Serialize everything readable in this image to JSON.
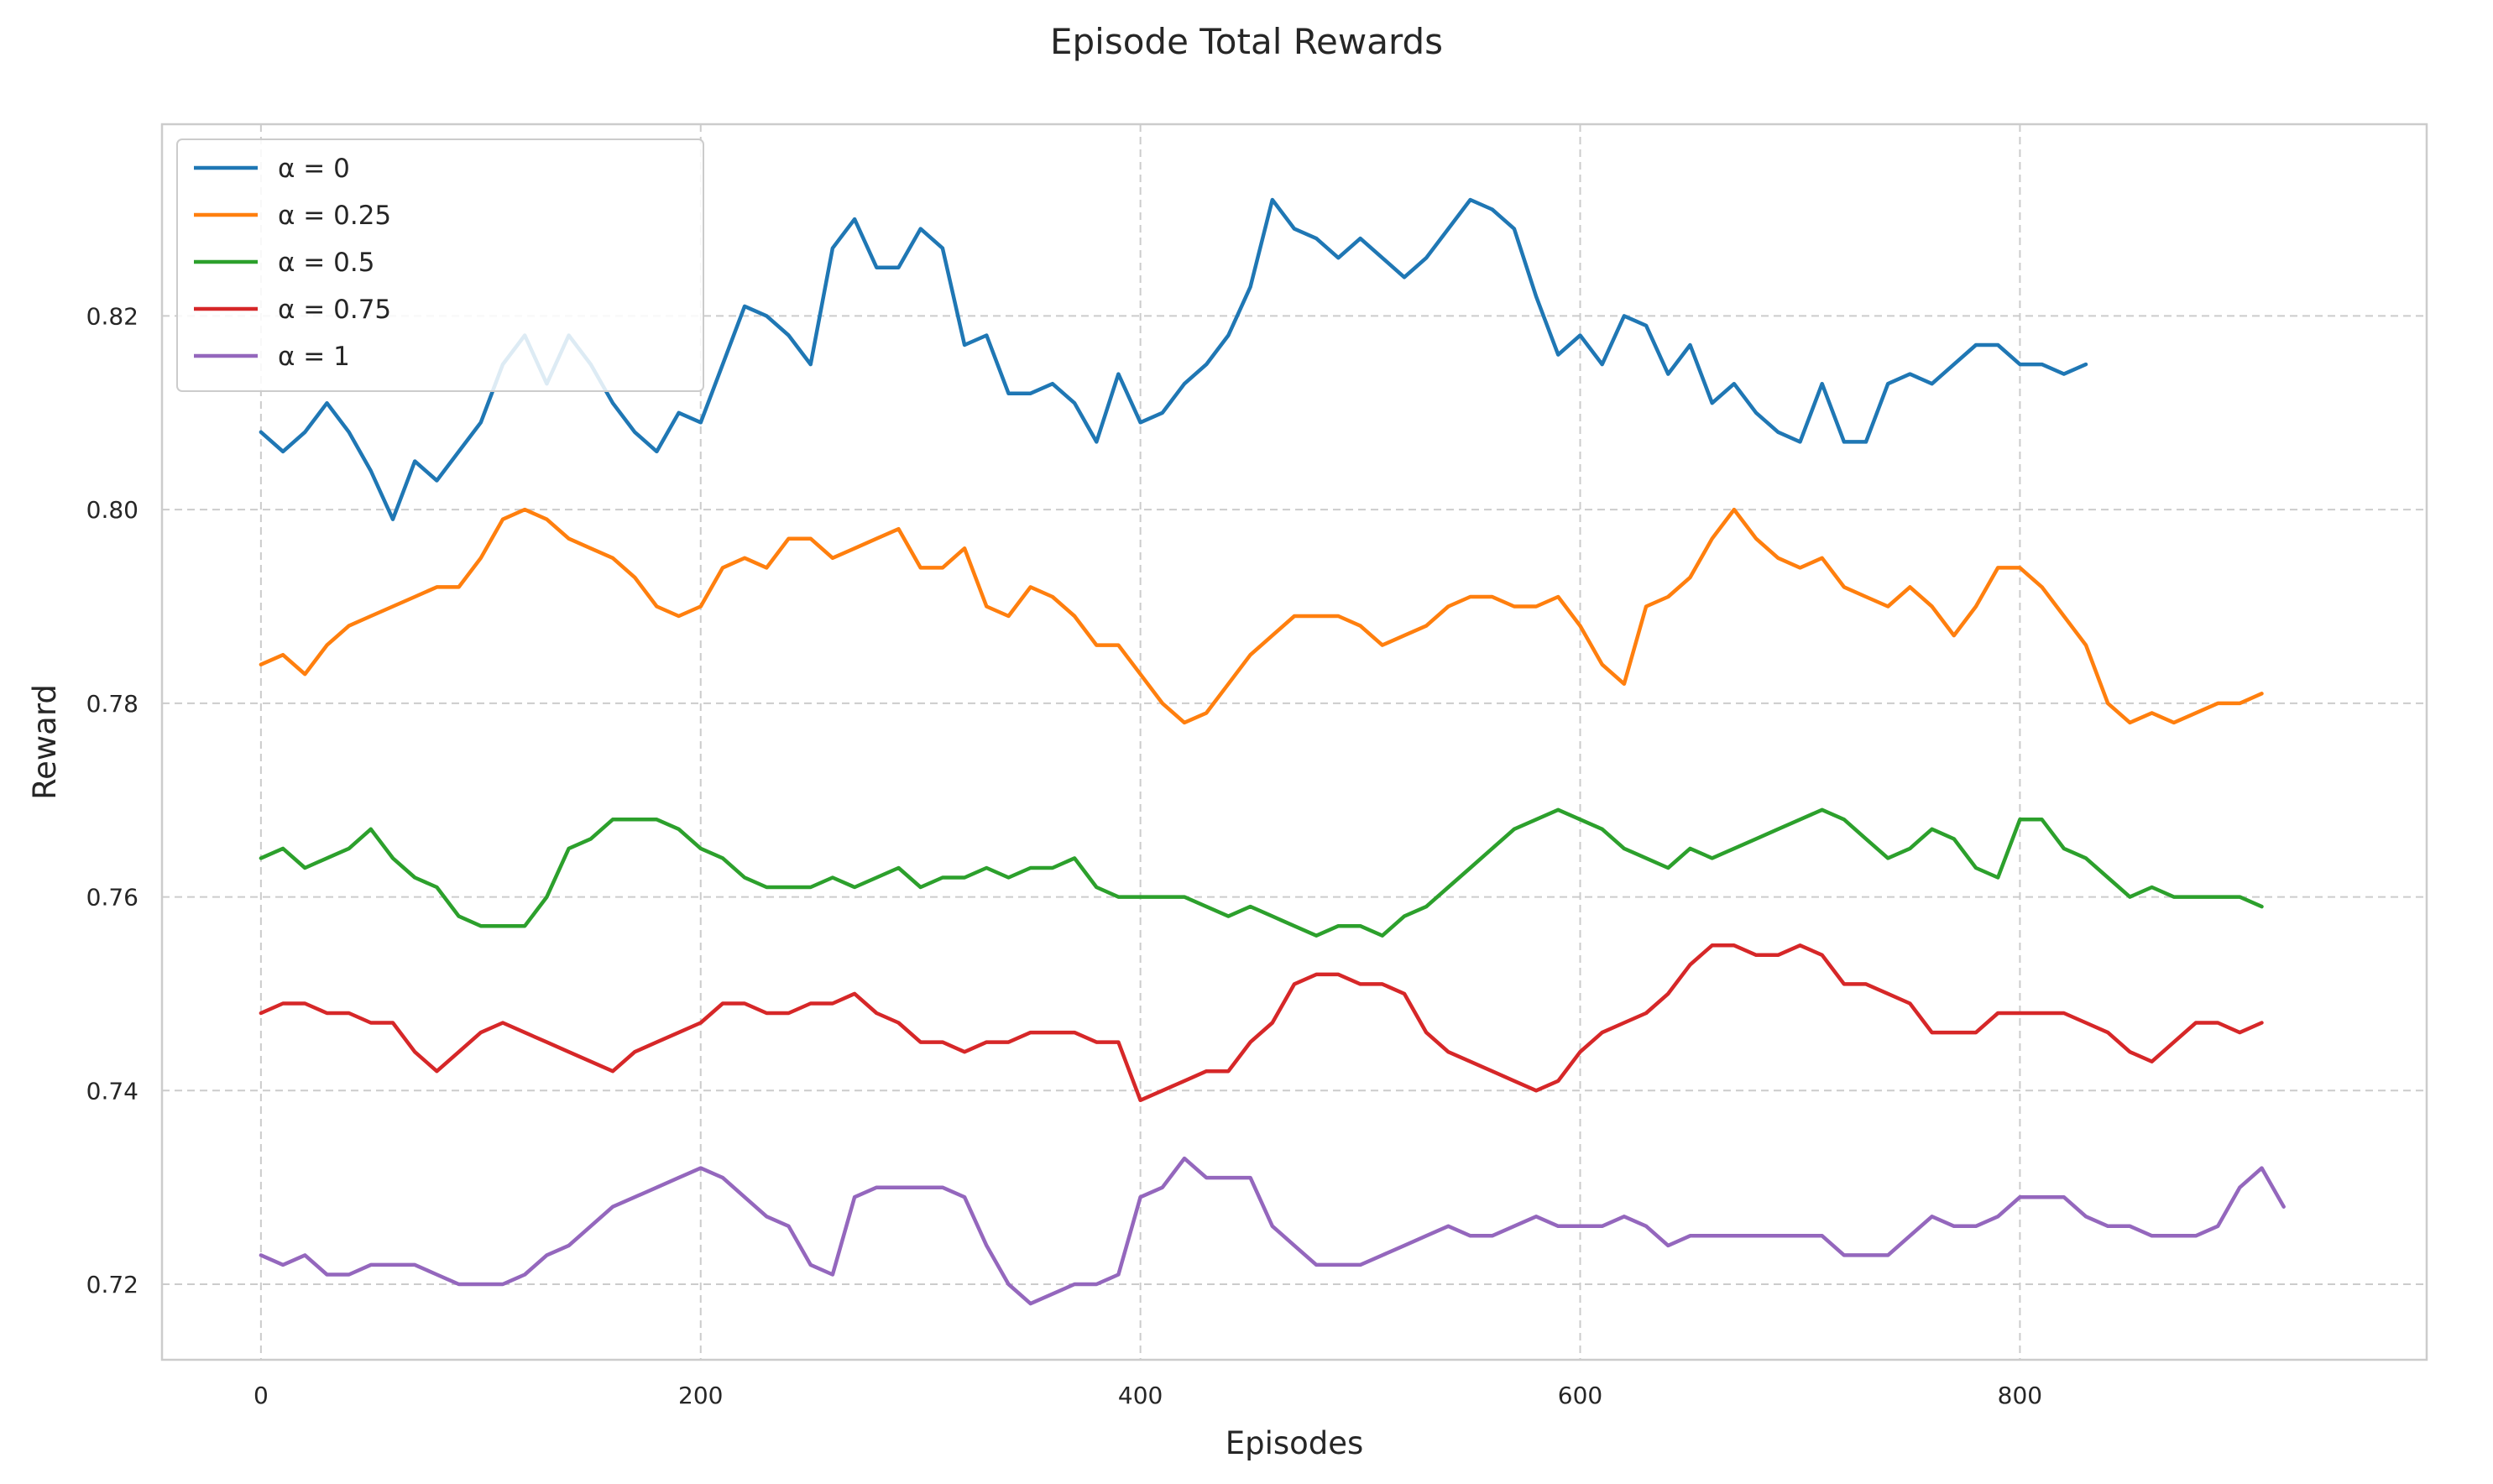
{
  "chart_data": {
    "type": "line",
    "title": "Episode Total Rewards",
    "xlabel": "Episodes",
    "ylabel": "Reward",
    "xlim": [
      -45,
      985
    ],
    "ylim": [
      0.7122,
      0.8398
    ],
    "x_ticks": [
      0,
      200,
      400,
      600,
      800
    ],
    "y_ticks": [
      0.72,
      0.74,
      0.76,
      0.78,
      0.8,
      0.82
    ],
    "x_tick_labels": [
      "0",
      "200",
      "400",
      "600",
      "800"
    ],
    "y_tick_labels": [
      "0.72",
      "0.74",
      "0.76",
      "0.78",
      "0.80",
      "0.82"
    ],
    "grid": true,
    "legend_position": "top-left",
    "x_step": 10,
    "series": [
      {
        "name": "α = 0",
        "color": "#1f77b4",
        "values": [
          0.808,
          0.806,
          0.808,
          0.811,
          0.808,
          0.804,
          0.799,
          0.805,
          0.803,
          0.806,
          0.809,
          0.815,
          0.818,
          0.813,
          0.818,
          0.815,
          0.811,
          0.808,
          0.806,
          0.81,
          0.809,
          0.815,
          0.821,
          0.82,
          0.818,
          0.815,
          0.827,
          0.83,
          0.825,
          0.825,
          0.829,
          0.827,
          0.817,
          0.818,
          0.812,
          0.812,
          0.813,
          0.811,
          0.807,
          0.814,
          0.809,
          0.81,
          0.813,
          0.815,
          0.818,
          0.823,
          0.832,
          0.829,
          0.828,
          0.826,
          0.828,
          0.826,
          0.824,
          0.826,
          0.829,
          0.832,
          0.831,
          0.829,
          0.822,
          0.816,
          0.818,
          0.815,
          0.82,
          0.819,
          0.814,
          0.817,
          0.811,
          0.813,
          0.81,
          0.808,
          0.807,
          0.813,
          0.807,
          0.807,
          0.813,
          0.814,
          0.813,
          0.815,
          0.817,
          0.817,
          0.815,
          0.815,
          0.814,
          0.815
        ]
      },
      {
        "name": "α = 0.25",
        "color": "#ff7f0e",
        "values": [
          0.784,
          0.785,
          0.783,
          0.786,
          0.788,
          0.789,
          0.79,
          0.791,
          0.792,
          0.792,
          0.795,
          0.799,
          0.8,
          0.799,
          0.797,
          0.796,
          0.795,
          0.793,
          0.79,
          0.789,
          0.79,
          0.794,
          0.795,
          0.794,
          0.797,
          0.797,
          0.795,
          0.796,
          0.797,
          0.798,
          0.794,
          0.794,
          0.796,
          0.79,
          0.789,
          0.792,
          0.791,
          0.789,
          0.786,
          0.786,
          0.783,
          0.78,
          0.778,
          0.779,
          0.782,
          0.785,
          0.787,
          0.789,
          0.789,
          0.789,
          0.788,
          0.786,
          0.787,
          0.788,
          0.79,
          0.791,
          0.791,
          0.79,
          0.79,
          0.791,
          0.788,
          0.784,
          0.782,
          0.79,
          0.791,
          0.793,
          0.797,
          0.8,
          0.797,
          0.795,
          0.794,
          0.795,
          0.792,
          0.791,
          0.79,
          0.792,
          0.79,
          0.787,
          0.79,
          0.794,
          0.794,
          0.792,
          0.789,
          0.786,
          0.78,
          0.778,
          0.779,
          0.778,
          0.779,
          0.78,
          0.78,
          0.781
        ]
      },
      {
        "name": "α = 0.5",
        "color": "#2ca02c",
        "values": [
          0.764,
          0.765,
          0.763,
          0.764,
          0.765,
          0.767,
          0.764,
          0.762,
          0.761,
          0.758,
          0.757,
          0.757,
          0.757,
          0.76,
          0.765,
          0.766,
          0.768,
          0.768,
          0.768,
          0.767,
          0.765,
          0.764,
          0.762,
          0.761,
          0.761,
          0.761,
          0.762,
          0.761,
          0.762,
          0.763,
          0.761,
          0.762,
          0.762,
          0.763,
          0.762,
          0.763,
          0.763,
          0.764,
          0.761,
          0.76,
          0.76,
          0.76,
          0.76,
          0.759,
          0.758,
          0.759,
          0.758,
          0.757,
          0.756,
          0.757,
          0.757,
          0.756,
          0.758,
          0.759,
          0.761,
          0.763,
          0.765,
          0.767,
          0.768,
          0.769,
          0.768,
          0.767,
          0.765,
          0.764,
          0.763,
          0.765,
          0.764,
          0.765,
          0.766,
          0.767,
          0.768,
          0.769,
          0.768,
          0.766,
          0.764,
          0.765,
          0.767,
          0.766,
          0.763,
          0.762,
          0.768,
          0.768,
          0.765,
          0.764,
          0.762,
          0.76,
          0.761,
          0.76,
          0.76,
          0.76,
          0.76,
          0.759
        ]
      },
      {
        "name": "α = 0.75",
        "color": "#d62728",
        "values": [
          0.748,
          0.749,
          0.749,
          0.748,
          0.748,
          0.747,
          0.747,
          0.744,
          0.742,
          0.744,
          0.746,
          0.747,
          0.746,
          0.745,
          0.744,
          0.743,
          0.742,
          0.744,
          0.745,
          0.746,
          0.747,
          0.749,
          0.749,
          0.748,
          0.748,
          0.749,
          0.749,
          0.75,
          0.748,
          0.747,
          0.745,
          0.745,
          0.744,
          0.745,
          0.745,
          0.746,
          0.746,
          0.746,
          0.745,
          0.745,
          0.739,
          0.74,
          0.741,
          0.742,
          0.742,
          0.745,
          0.747,
          0.751,
          0.752,
          0.752,
          0.751,
          0.751,
          0.75,
          0.746,
          0.744,
          0.743,
          0.742,
          0.741,
          0.74,
          0.741,
          0.744,
          0.746,
          0.747,
          0.748,
          0.75,
          0.753,
          0.755,
          0.755,
          0.754,
          0.754,
          0.755,
          0.754,
          0.751,
          0.751,
          0.75,
          0.749,
          0.746,
          0.746,
          0.746,
          0.748,
          0.748,
          0.748,
          0.748,
          0.747,
          0.746,
          0.744,
          0.743,
          0.745,
          0.747,
          0.747,
          0.746,
          0.747
        ]
      },
      {
        "name": "α = 1",
        "color": "#9467bd",
        "values": [
          0.723,
          0.722,
          0.723,
          0.721,
          0.721,
          0.722,
          0.722,
          0.722,
          0.721,
          0.72,
          0.72,
          0.72,
          0.721,
          0.723,
          0.724,
          0.726,
          0.728,
          0.729,
          0.73,
          0.731,
          0.732,
          0.731,
          0.729,
          0.727,
          0.726,
          0.722,
          0.721,
          0.729,
          0.73,
          0.73,
          0.73,
          0.73,
          0.729,
          0.724,
          0.72,
          0.718,
          0.719,
          0.72,
          0.72,
          0.721,
          0.729,
          0.73,
          0.733,
          0.731,
          0.731,
          0.731,
          0.726,
          0.724,
          0.722,
          0.722,
          0.722,
          0.723,
          0.724,
          0.725,
          0.726,
          0.725,
          0.725,
          0.726,
          0.727,
          0.726,
          0.726,
          0.726,
          0.727,
          0.726,
          0.724,
          0.725,
          0.725,
          0.725,
          0.725,
          0.725,
          0.725,
          0.725,
          0.723,
          0.723,
          0.723,
          0.725,
          0.727,
          0.726,
          0.726,
          0.727,
          0.729,
          0.729,
          0.729,
          0.727,
          0.726,
          0.726,
          0.725,
          0.725,
          0.725,
          0.726,
          0.73,
          0.732,
          0.728
        ]
      }
    ]
  }
}
